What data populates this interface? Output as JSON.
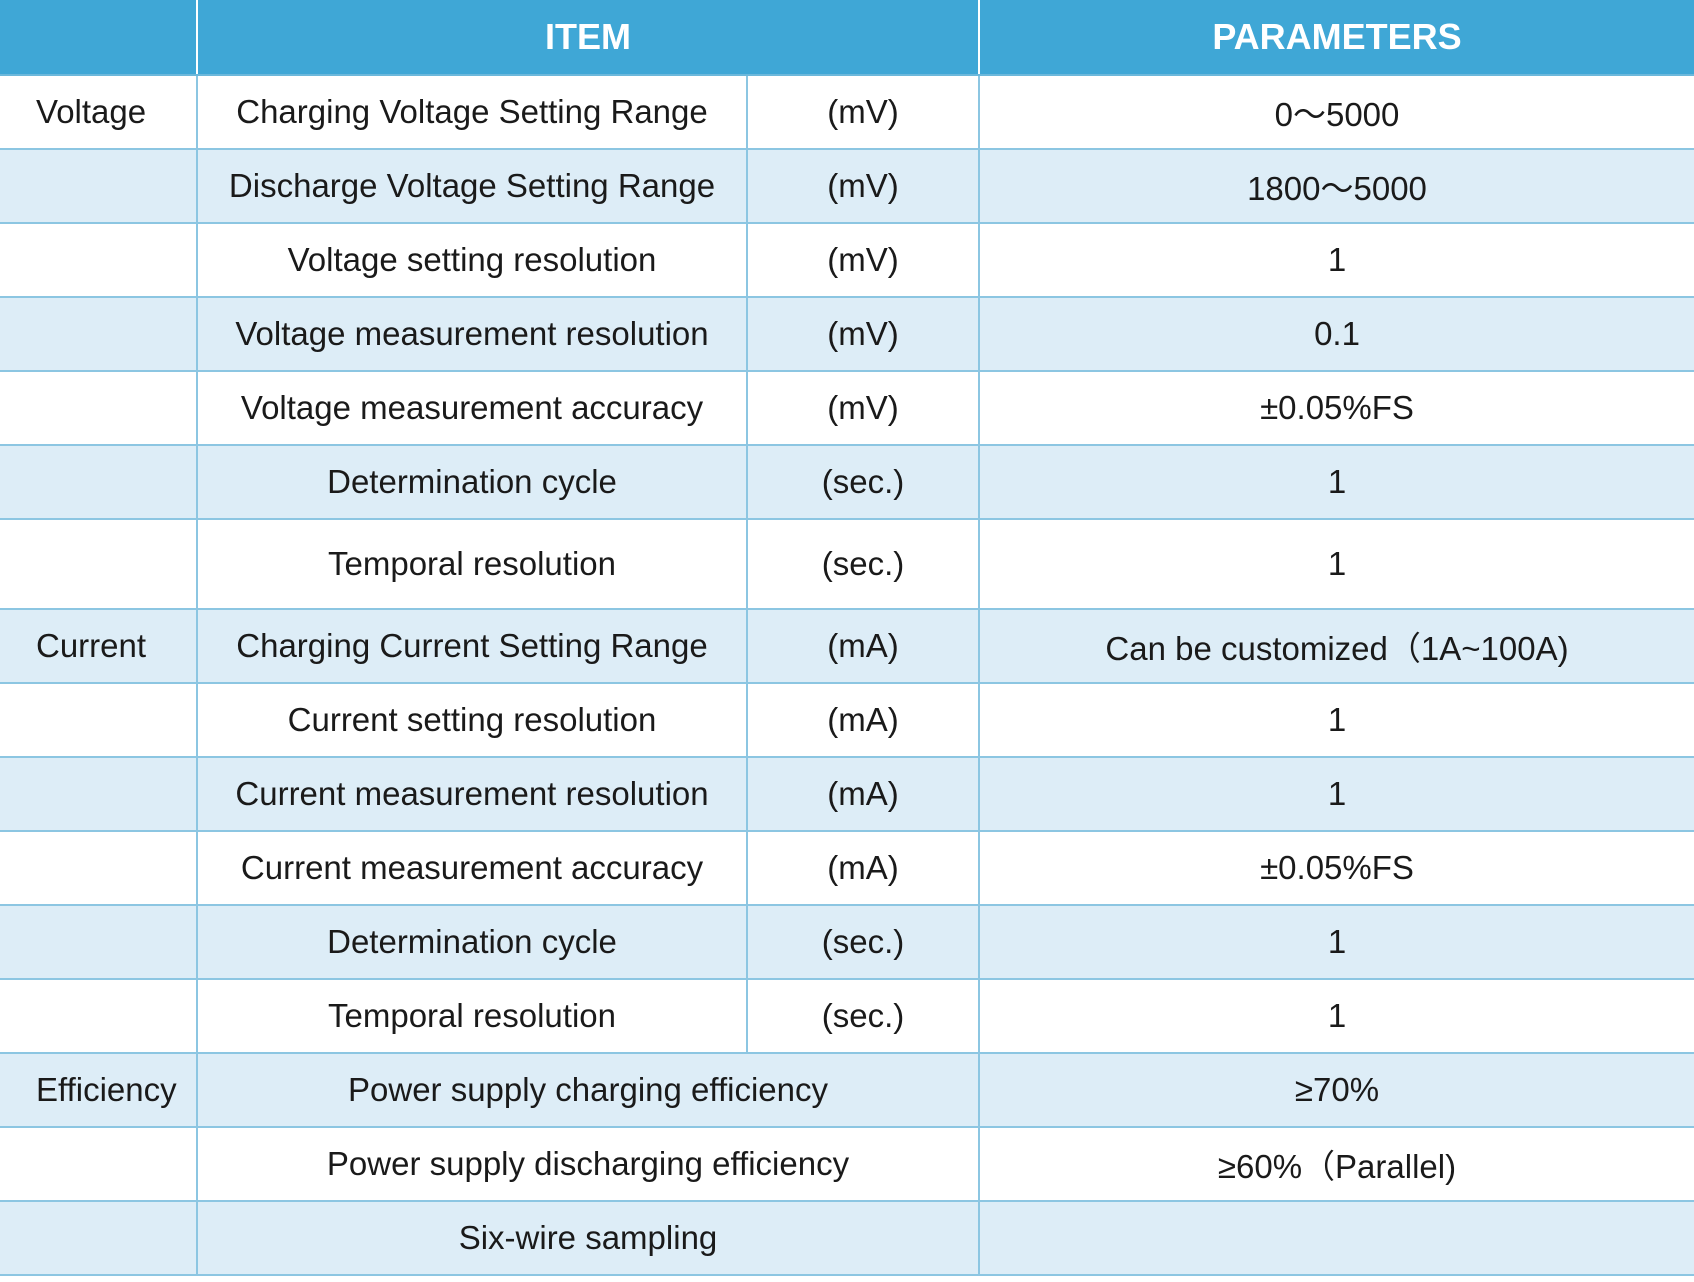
{
  "header": {
    "item_label": "ITEM",
    "parameters_label": "PARAMETERS"
  },
  "rows": [
    {
      "category": "Voltage",
      "item": "Charging Voltage Setting Range",
      "unit": "(mV)",
      "value": "0～5000"
    },
    {
      "category": "",
      "item": "Discharge Voltage Setting Range",
      "unit": "(mV)",
      "value": "1800～5000"
    },
    {
      "category": "",
      "item": "Voltage setting resolution",
      "unit": "(mV)",
      "value": "1"
    },
    {
      "category": "",
      "item": "Voltage measurement resolution",
      "unit": "(mV)",
      "value": "0.1"
    },
    {
      "category": "",
      "item": "Voltage measurement accuracy",
      "unit": "(mV)",
      "value": "±0.05%FS"
    },
    {
      "category": "",
      "item": "Determination cycle",
      "unit": "(sec.)",
      "value": "1"
    },
    {
      "category": "",
      "item": "Temporal resolution",
      "unit": "(sec.)",
      "value": "1"
    },
    {
      "category": "Current",
      "item": "Charging Current Setting Range",
      "unit": "(mA)",
      "value": "Can be customized（1A~100A)"
    },
    {
      "category": "",
      "item": "Current setting resolution",
      "unit": "(mA)",
      "value": "1"
    },
    {
      "category": "",
      "item": "Current measurement resolution",
      "unit": "(mA)",
      "value": "1"
    },
    {
      "category": "",
      "item": "Current measurement accuracy",
      "unit": "(mA)",
      "value": "±0.05%FS"
    },
    {
      "category": "",
      "item": "Determination cycle",
      "unit": "(sec.)",
      "value": "1"
    },
    {
      "category": "",
      "item": "Temporal resolution",
      "unit": "(sec.)",
      "value": "1"
    },
    {
      "category": "Efficiency",
      "item": "Power supply charging efficiency",
      "unit": "",
      "value": "≥70%"
    },
    {
      "category": "",
      "item": "Power supply discharging efficiency",
      "unit": "",
      "value": "≥60%（Parallel)"
    },
    {
      "category": "",
      "item": "Six-wire sampling",
      "unit": "",
      "value": ""
    }
  ]
}
